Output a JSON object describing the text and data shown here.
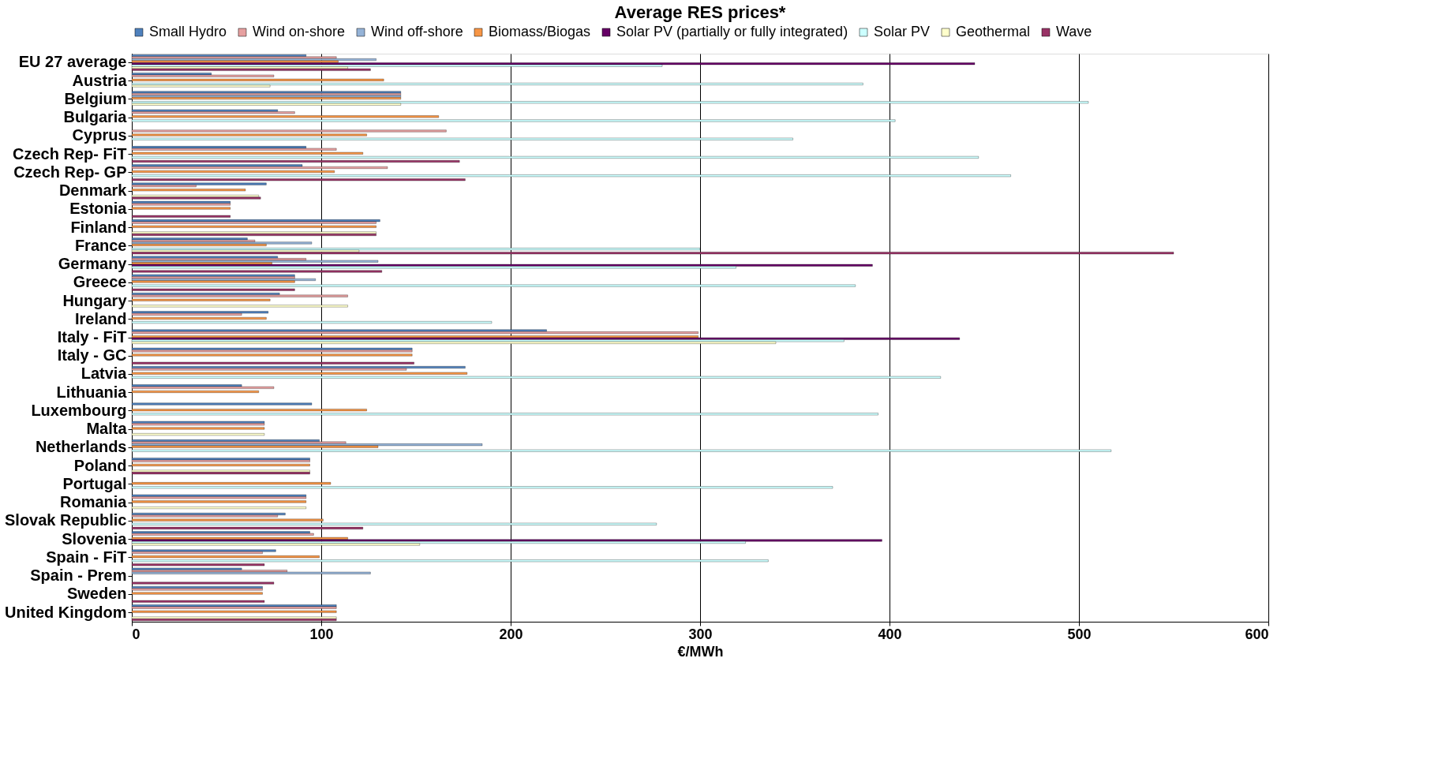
{
  "chart_data": {
    "type": "bar",
    "orientation": "horizontal",
    "title": "Average RES prices*",
    "xlabel": "€/MWh",
    "legend": "top",
    "grid": "x",
    "xlim": [
      0,
      600
    ],
    "xticks": [
      0,
      100,
      200,
      300,
      400,
      500,
      600
    ],
    "categories": [
      "EU 27 average",
      "Austria",
      "Belgium",
      "Bulgaria",
      "Cyprus",
      "Czech Rep- FiT",
      "Czech Rep- GP",
      "Denmark",
      "Estonia",
      "Finland",
      "France",
      "Germany",
      "Greece",
      "Hungary",
      "Ireland",
      "Italy - FiT",
      "Italy - GC",
      "Latvia",
      "Lithuania",
      "Luxembourg",
      "Malta",
      "Netherlands",
      "Poland",
      "Portugal",
      "Romania",
      "Slovak Republic",
      "Slovenia",
      "Spain - FiT",
      "Spain - Prem",
      "Sweden",
      "United Kingdom"
    ],
    "series": [
      {
        "name": "Small Hydro",
        "color": "#4f81bd",
        "values": [
          92,
          42,
          142,
          77,
          null,
          92,
          90,
          71,
          52,
          131,
          61,
          77,
          86,
          78,
          72,
          219,
          148,
          176,
          58,
          95,
          70,
          99,
          94,
          null,
          92,
          81,
          94,
          76,
          58,
          69,
          108
        ]
      },
      {
        "name": "Wind on-shore",
        "color": "#e6a0a0",
        "values": [
          108,
          75,
          142,
          86,
          166,
          108,
          135,
          34,
          52,
          129,
          65,
          92,
          86,
          114,
          58,
          299,
          148,
          145,
          75,
          null,
          70,
          113,
          94,
          null,
          92,
          77,
          96,
          69,
          82,
          69,
          108
        ]
      },
      {
        "name": "Wind off-shore",
        "color": "#95b3d7",
        "values": [
          129,
          null,
          142,
          null,
          null,
          null,
          null,
          null,
          null,
          null,
          95,
          130,
          97,
          null,
          null,
          null,
          null,
          null,
          null,
          null,
          null,
          185,
          null,
          null,
          null,
          null,
          null,
          null,
          126,
          null,
          null
        ]
      },
      {
        "name": "Biomass/Biogas",
        "color": "#f79646",
        "values": [
          109,
          133,
          142,
          162,
          124,
          122,
          107,
          60,
          52,
          129,
          71,
          74,
          86,
          73,
          71,
          299,
          148,
          177,
          67,
          124,
          70,
          130,
          94,
          105,
          92,
          101,
          114,
          99,
          null,
          69,
          108
        ]
      },
      {
        "name": "Solar PV (partially or fully integrated)",
        "color": "#660066",
        "values": [
          445,
          null,
          null,
          null,
          null,
          null,
          null,
          null,
          null,
          null,
          null,
          391,
          null,
          null,
          null,
          437,
          null,
          null,
          null,
          null,
          null,
          null,
          null,
          null,
          null,
          null,
          396,
          null,
          null,
          null,
          null
        ]
      },
      {
        "name": "Solar PV",
        "color": "#ccffff",
        "values": [
          280,
          386,
          505,
          403,
          349,
          447,
          464,
          null,
          null,
          null,
          300,
          319,
          382,
          null,
          190,
          376,
          null,
          427,
          null,
          394,
          null,
          517,
          null,
          370,
          null,
          277,
          324,
          336,
          null,
          null,
          null
        ]
      },
      {
        "name": "Geothermal",
        "color": "#ffffcc",
        "values": [
          114,
          73,
          142,
          null,
          null,
          null,
          null,
          67,
          null,
          129,
          120,
          null,
          null,
          114,
          null,
          340,
          null,
          null,
          null,
          null,
          70,
          null,
          94,
          null,
          92,
          null,
          152,
          null,
          null,
          null,
          108
        ]
      },
      {
        "name": "Wave",
        "color": "#993366",
        "values": [
          126,
          null,
          null,
          null,
          null,
          173,
          176,
          68,
          52,
          129,
          550,
          132,
          86,
          null,
          null,
          null,
          149,
          null,
          null,
          null,
          null,
          null,
          94,
          null,
          null,
          122,
          null,
          70,
          75,
          70,
          108
        ]
      }
    ]
  }
}
